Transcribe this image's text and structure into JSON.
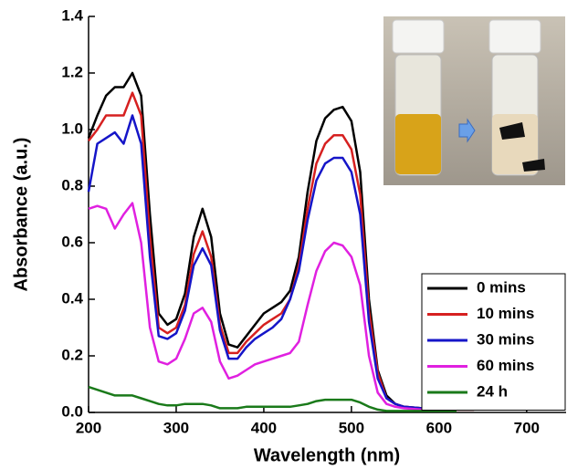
{
  "chart_data": {
    "type": "line",
    "x_label": "Wavelength (nm)",
    "y_label": "Absorbance (a.u.)",
    "xlim": [
      200,
      745
    ],
    "ylim": [
      0,
      1.4
    ],
    "xticks": [
      200,
      300,
      400,
      500,
      600,
      700
    ],
    "yticks": [
      {
        "value": 0,
        "label": "0.0"
      },
      {
        "value": 0.2,
        "label": "0.2"
      },
      {
        "value": 0.4,
        "label": "0.4"
      },
      {
        "value": 0.6,
        "label": "0.6"
      },
      {
        "value": 0.8,
        "label": "0.8"
      },
      {
        "value": 1.0,
        "label": "1.0"
      },
      {
        "value": 1.2,
        "label": "1.2"
      },
      {
        "value": 1.4,
        "label": "1.4"
      }
    ],
    "legend_position": "right",
    "x": [
      200,
      210,
      220,
      230,
      240,
      250,
      260,
      270,
      280,
      290,
      300,
      310,
      320,
      330,
      340,
      350,
      360,
      370,
      380,
      390,
      400,
      410,
      420,
      430,
      440,
      450,
      460,
      470,
      480,
      490,
      500,
      510,
      520,
      530,
      540,
      550,
      560,
      580,
      600,
      620,
      640
    ],
    "series": [
      {
        "name": "0 mins",
        "color": "#000000",
        "values": [
          0.97,
          1.05,
          1.12,
          1.15,
          1.15,
          1.2,
          1.12,
          0.7,
          0.35,
          0.31,
          0.33,
          0.42,
          0.62,
          0.72,
          0.62,
          0.35,
          0.24,
          0.23,
          0.27,
          0.31,
          0.35,
          0.37,
          0.39,
          0.43,
          0.55,
          0.78,
          0.96,
          1.04,
          1.07,
          1.08,
          1.03,
          0.85,
          0.4,
          0.15,
          0.06,
          0.03,
          0.02,
          0.015,
          0.01,
          0.01,
          0.01
        ]
      },
      {
        "name": "10 mins",
        "color": "#d62020",
        "values": [
          0.96,
          1.0,
          1.05,
          1.05,
          1.05,
          1.13,
          1.05,
          0.62,
          0.3,
          0.28,
          0.3,
          0.38,
          0.56,
          0.64,
          0.55,
          0.31,
          0.21,
          0.21,
          0.25,
          0.28,
          0.31,
          0.33,
          0.35,
          0.4,
          0.52,
          0.72,
          0.88,
          0.95,
          0.98,
          0.98,
          0.93,
          0.77,
          0.36,
          0.14,
          0.05,
          0.03,
          0.02,
          0.015,
          0.01,
          0.01,
          0.01
        ]
      },
      {
        "name": "30 mins",
        "color": "#1515c8",
        "values": [
          0.78,
          0.95,
          0.97,
          0.99,
          0.95,
          1.05,
          0.95,
          0.55,
          0.27,
          0.26,
          0.28,
          0.36,
          0.52,
          0.58,
          0.52,
          0.29,
          0.19,
          0.19,
          0.23,
          0.26,
          0.28,
          0.3,
          0.33,
          0.4,
          0.5,
          0.68,
          0.82,
          0.88,
          0.9,
          0.9,
          0.85,
          0.7,
          0.32,
          0.12,
          0.05,
          0.03,
          0.02,
          0.015,
          0.01,
          0.01,
          null
        ]
      },
      {
        "name": "60 mins",
        "color": "#e020e0",
        "values": [
          0.72,
          0.73,
          0.72,
          0.65,
          0.7,
          0.74,
          0.6,
          0.3,
          0.18,
          0.17,
          0.19,
          0.26,
          0.35,
          0.37,
          0.32,
          0.18,
          0.12,
          0.13,
          0.15,
          0.17,
          0.18,
          0.19,
          0.2,
          0.21,
          0.25,
          0.38,
          0.5,
          0.57,
          0.6,
          0.59,
          0.55,
          0.45,
          0.2,
          0.07,
          0.03,
          0.02,
          0.015,
          0.01,
          0.01,
          0.01,
          null
        ]
      },
      {
        "name": "24 h",
        "color": "#1a7a1a",
        "values": [
          0.09,
          0.08,
          0.07,
          0.06,
          0.06,
          0.06,
          0.05,
          0.04,
          0.03,
          0.025,
          0.025,
          0.03,
          0.03,
          0.03,
          0.025,
          0.015,
          0.015,
          0.015,
          0.02,
          0.02,
          0.02,
          0.02,
          0.02,
          0.02,
          0.025,
          0.03,
          0.04,
          0.045,
          0.045,
          0.045,
          0.045,
          0.035,
          0.02,
          0.01,
          0.005,
          0.005,
          0.005,
          0.005,
          0.005,
          0.005,
          null
        ]
      }
    ]
  }
}
